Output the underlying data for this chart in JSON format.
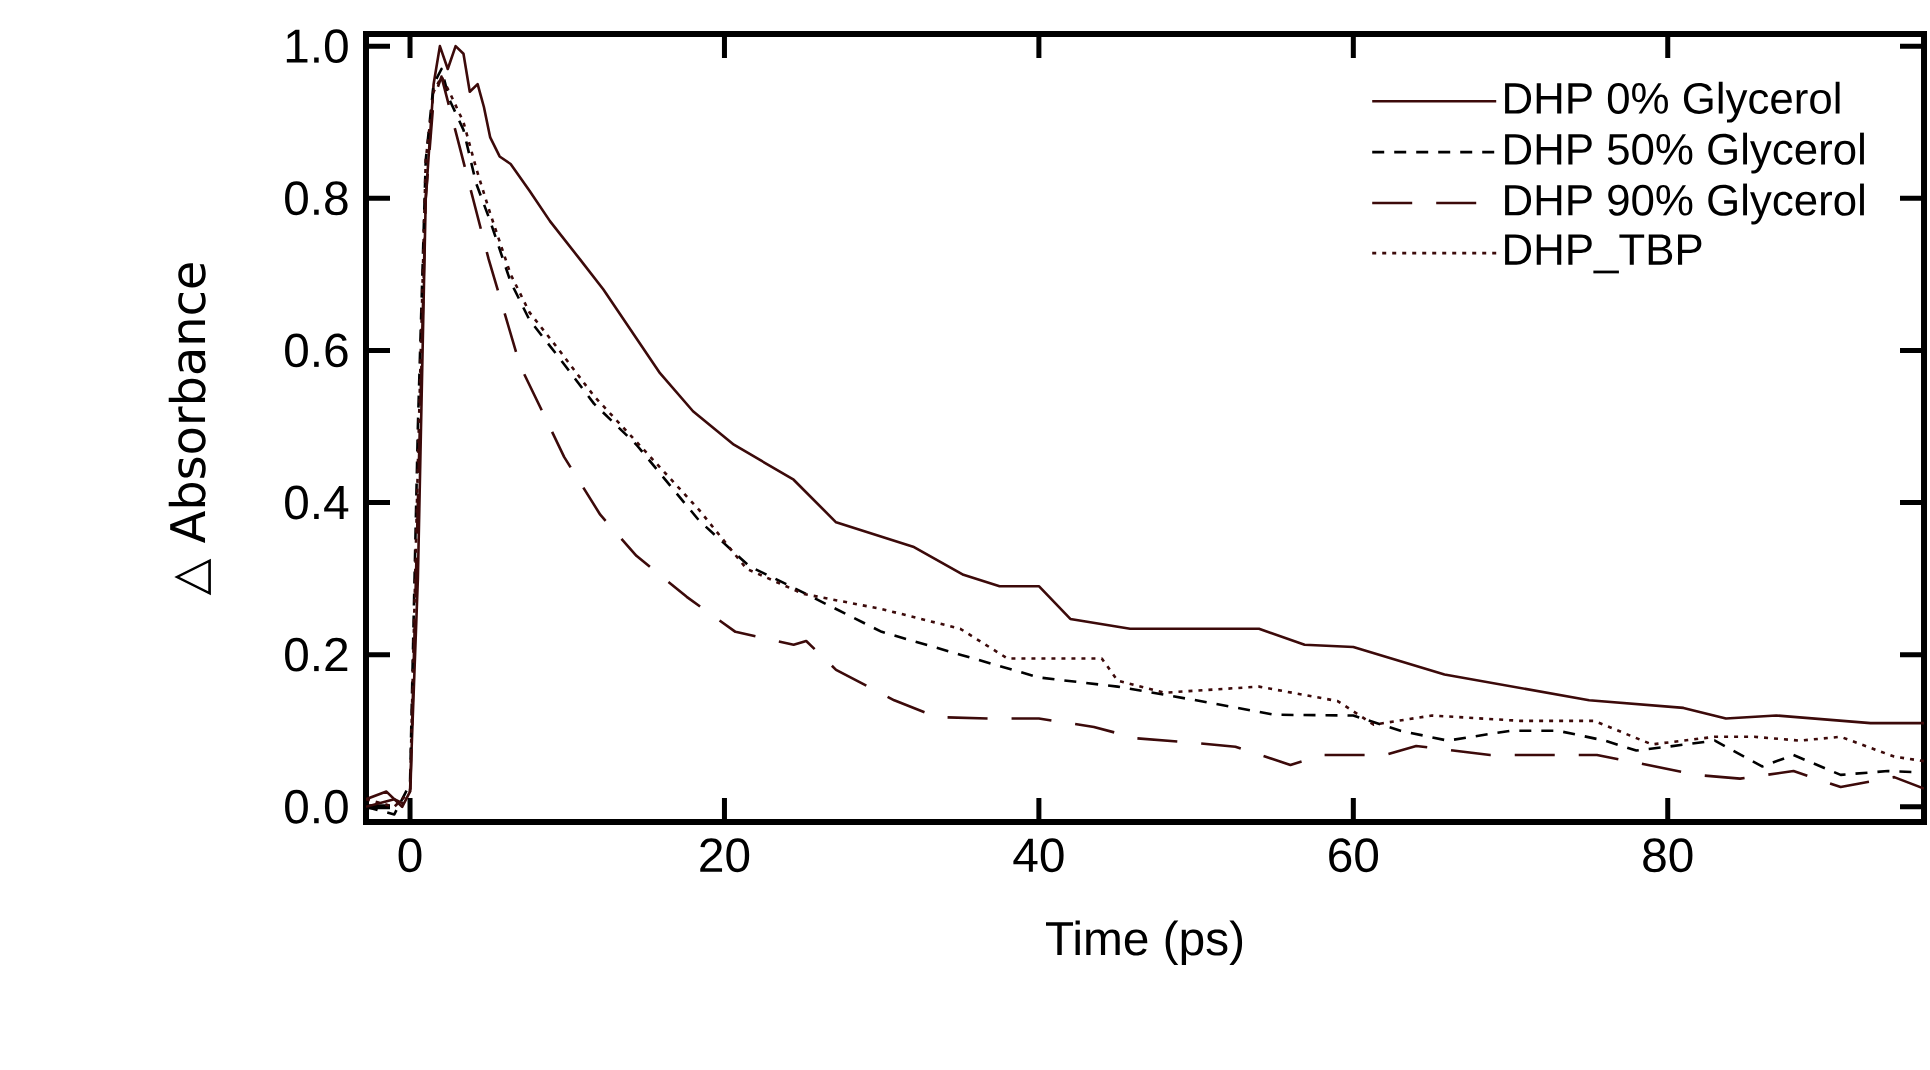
{
  "chart_data": {
    "type": "line",
    "xlabel": "Time (ps)",
    "ylabel": "△ Absorbance",
    "xlim": [
      -2.8,
      96.3
    ],
    "ylim": [
      -0.02,
      1.016
    ],
    "xticks": [
      0,
      20,
      40,
      60,
      80
    ],
    "yticks": [
      {
        "value": 0,
        "label": "0.0"
      },
      0.2,
      0.4,
      0.6,
      0.8,
      {
        "value": 1,
        "label": "1.0"
      }
    ],
    "grid": false,
    "legend": "top right",
    "marker": "none",
    "series": [
      {
        "name": "DHP 0% Glycerol",
        "color": "#3c0a0a",
        "line_style": "solid",
        "x": [
          -2.8,
          -1.5,
          -0.5,
          0,
          0.5,
          1,
          1.5,
          1.9,
          2.4,
          2.9,
          3.4,
          3.8,
          4.3,
          4.7,
          5.1,
          5.7,
          6.4,
          7.6,
          8.9,
          10.8,
          12.3,
          15.9,
          18,
          20.6,
          24.4,
          27.1,
          32,
          35.2,
          37.5,
          40,
          42,
          45.8,
          54,
          56.9,
          60,
          65.8,
          75,
          81,
          83.7,
          86.9,
          92.9,
          96.3
        ],
        "values": [
          0.01,
          0.02,
          0.0,
          0.02,
          0.3,
          0.8,
          0.95,
          1.0,
          0.97,
          1.0,
          0.99,
          0.94,
          0.95,
          0.92,
          0.88,
          0.855,
          0.845,
          0.81,
          0.77,
          0.72,
          0.68,
          0.57,
          0.52,
          0.476,
          0.43,
          0.374,
          0.342,
          0.305,
          0.29,
          0.29,
          0.247,
          0.234,
          0.234,
          0.213,
          0.21,
          0.174,
          0.14,
          0.13,
          0.116,
          0.12,
          0.11,
          0.11
        ]
      },
      {
        "name": "DHP 50% Glycerol",
        "color": "#000000",
        "line_style": "dashed",
        "x": [
          -2.8,
          -1,
          0,
          0.5,
          1,
          1.5,
          2,
          2.5,
          3.4,
          4.2,
          5.1,
          6.4,
          7.6,
          9.5,
          11.7,
          14.4,
          18.4,
          21.6,
          24.2,
          30,
          35,
          40,
          45,
          50,
          55,
          60,
          63,
          66,
          70,
          73,
          76,
          78,
          80,
          83,
          86,
          88,
          91,
          94,
          96.3
        ],
        "values": [
          0.0,
          -0.01,
          0.03,
          0.5,
          0.85,
          0.95,
          0.97,
          0.93,
          0.89,
          0.82,
          0.77,
          0.69,
          0.64,
          0.59,
          0.53,
          0.476,
          0.376,
          0.316,
          0.29,
          0.23,
          0.2,
          0.17,
          0.158,
          0.14,
          0.121,
          0.12,
          0.1,
          0.087,
          0.1,
          0.1,
          0.087,
          0.074,
          0.079,
          0.087,
          0.053,
          0.068,
          0.042,
          0.047,
          0.045
        ]
      },
      {
        "name": "DHP 90% Glycerol",
        "color": "#3c0a0a",
        "line_style": "long dashed",
        "x": [
          -2.8,
          -1,
          0,
          0.5,
          1,
          1.5,
          2,
          2.5,
          3,
          4,
          5,
          6,
          7,
          8.5,
          9.8,
          12.1,
          14.4,
          17.6,
          20.7,
          24.4,
          25.2,
          27.1,
          30.8,
          33.5,
          37,
          40,
          43.5,
          46.2,
          49.9,
          52.5,
          56,
          58,
          62,
          64,
          68.7,
          71.9,
          75.5,
          78,
          81.8,
          84.6,
          88,
          91,
          94.4,
          96.3
        ],
        "values": [
          0.0,
          0.01,
          0.0,
          0.4,
          0.8,
          0.93,
          0.96,
          0.92,
          0.88,
          0.8,
          0.72,
          0.65,
          0.58,
          0.516,
          0.46,
          0.384,
          0.33,
          0.276,
          0.23,
          0.213,
          0.218,
          0.18,
          0.14,
          0.118,
          0.116,
          0.116,
          0.105,
          0.09,
          0.084,
          0.079,
          0.055,
          0.068,
          0.068,
          0.08,
          0.068,
          0.068,
          0.068,
          0.058,
          0.042,
          0.037,
          0.047,
          0.026,
          0.039,
          0.024
        ]
      },
      {
        "name": "DHP_TBP",
        "color": "#3c0a0a",
        "line_style": "dotted",
        "x": [
          -2.8,
          -1,
          0,
          0.5,
          1,
          1.5,
          2,
          2.5,
          3.4,
          4.2,
          5.1,
          6.4,
          7.6,
          9.5,
          11.7,
          14.4,
          18.4,
          21.4,
          25,
          30,
          35,
          38,
          44,
          45,
          48,
          54,
          59,
          61.3,
          65,
          70.6,
          75.3,
          79,
          83,
          85.5,
          88.4,
          91,
          94.4,
          96.3
        ],
        "values": [
          0.01,
          0.0,
          0.02,
          0.45,
          0.85,
          0.94,
          0.96,
          0.94,
          0.9,
          0.84,
          0.78,
          0.7,
          0.65,
          0.6,
          0.54,
          0.48,
          0.39,
          0.313,
          0.28,
          0.26,
          0.234,
          0.195,
          0.195,
          0.166,
          0.15,
          0.158,
          0.139,
          0.108,
          0.12,
          0.113,
          0.113,
          0.082,
          0.092,
          0.092,
          0.087,
          0.092,
          0.066,
          0.06
        ]
      }
    ]
  }
}
